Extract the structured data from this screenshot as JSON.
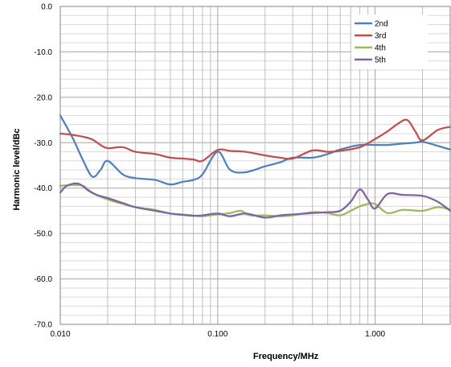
{
  "chart_data": {
    "type": "line",
    "xlabel": "Frequency/MHz",
    "ylabel": "Harmonic level/dBc",
    "x_scale": "log",
    "xlim": [
      0.01,
      3.0
    ],
    "ylim": [
      -70,
      0
    ],
    "grid": true,
    "legend_position": "top-right",
    "x_ticks": [
      {
        "value": 0.01,
        "label": "0.010"
      },
      {
        "value": 0.1,
        "label": "0.100"
      },
      {
        "value": 1.0,
        "label": "1.000"
      }
    ],
    "y_ticks": [
      {
        "value": 0,
        "label": "0.0"
      },
      {
        "value": -10,
        "label": "-10.0"
      },
      {
        "value": -20,
        "label": "-20.0"
      },
      {
        "value": -30,
        "label": "-30.0"
      },
      {
        "value": -40,
        "label": "-40.0"
      },
      {
        "value": -50,
        "label": "-50.0"
      },
      {
        "value": -60,
        "label": "-60.0"
      },
      {
        "value": -70,
        "label": "-70.0"
      }
    ],
    "series": [
      {
        "name": "2nd",
        "color": "#4f81bd",
        "x": [
          0.01,
          0.012,
          0.014,
          0.016,
          0.018,
          0.02,
          0.025,
          0.03,
          0.04,
          0.05,
          0.06,
          0.07,
          0.08,
          0.1,
          0.12,
          0.15,
          0.2,
          0.25,
          0.3,
          0.4,
          0.5,
          0.6,
          0.8,
          1.0,
          1.2,
          1.5,
          1.8,
          2.0,
          2.5,
          3.0
        ],
        "y": [
          -24,
          -29,
          -34,
          -37.5,
          -36,
          -34,
          -37,
          -37.8,
          -38.2,
          -39.2,
          -38.6,
          -38.2,
          -37,
          -32,
          -36,
          -36.5,
          -35.2,
          -34.3,
          -33.3,
          -33.3,
          -32.5,
          -31.5,
          -30.5,
          -30.5,
          -30.5,
          -30.2,
          -30,
          -29.8,
          -30.7,
          -31.5
        ]
      },
      {
        "name": "3rd",
        "color": "#c0504d",
        "x": [
          0.01,
          0.012,
          0.014,
          0.016,
          0.018,
          0.02,
          0.025,
          0.03,
          0.04,
          0.05,
          0.06,
          0.07,
          0.08,
          0.1,
          0.12,
          0.15,
          0.2,
          0.25,
          0.3,
          0.4,
          0.5,
          0.6,
          0.8,
          1.0,
          1.2,
          1.4,
          1.6,
          1.8,
          2.0,
          2.5,
          3.0
        ],
        "y": [
          -28,
          -28.3,
          -28.7,
          -29.3,
          -30.5,
          -31.2,
          -31,
          -32,
          -32.5,
          -33.3,
          -33.5,
          -33.7,
          -34,
          -31.6,
          -31.8,
          -32,
          -32.8,
          -33.3,
          -33.5,
          -31.7,
          -32,
          -31.8,
          -31,
          -29.2,
          -27.5,
          -25.8,
          -25,
          -27.5,
          -29.5,
          -27.2,
          -26.5
        ]
      },
      {
        "name": "4th",
        "color": "#9bbb59",
        "x": [
          0.01,
          0.012,
          0.014,
          0.016,
          0.02,
          0.025,
          0.03,
          0.04,
          0.05,
          0.06,
          0.07,
          0.08,
          0.1,
          0.12,
          0.14,
          0.16,
          0.2,
          0.25,
          0.3,
          0.4,
          0.5,
          0.6,
          0.7,
          0.8,
          0.9,
          1.0,
          1.2,
          1.5,
          2.0,
          2.5,
          3.0
        ],
        "y": [
          -39.5,
          -39.3,
          -39.5,
          -41,
          -42.5,
          -43.5,
          -44.2,
          -44.8,
          -45.6,
          -45.8,
          -46,
          -46.2,
          -45.8,
          -45.5,
          -45,
          -46,
          -46,
          -46.2,
          -46,
          -45.3,
          -45.5,
          -46,
          -45,
          -44,
          -43.5,
          -43.5,
          -45.5,
          -44.8,
          -45,
          -44.2,
          -44.7
        ]
      },
      {
        "name": "5th",
        "color": "#8064a2",
        "x": [
          0.01,
          0.011,
          0.013,
          0.015,
          0.017,
          0.02,
          0.025,
          0.03,
          0.04,
          0.05,
          0.06,
          0.07,
          0.08,
          0.1,
          0.12,
          0.15,
          0.2,
          0.25,
          0.3,
          0.4,
          0.5,
          0.6,
          0.7,
          0.8,
          0.9,
          1.0,
          1.2,
          1.5,
          2.0,
          2.5,
          3.0
        ],
        "y": [
          -41,
          -39.5,
          -39,
          -40.5,
          -41.5,
          -42.2,
          -43.3,
          -44.2,
          -45,
          -45.6,
          -45.9,
          -46.1,
          -46,
          -45.6,
          -46.2,
          -45.6,
          -46.5,
          -46,
          -45.8,
          -45.5,
          -45.3,
          -45,
          -43,
          -40.3,
          -42.5,
          -44.5,
          -41.3,
          -41.5,
          -41.7,
          -43,
          -45
        ]
      }
    ]
  }
}
